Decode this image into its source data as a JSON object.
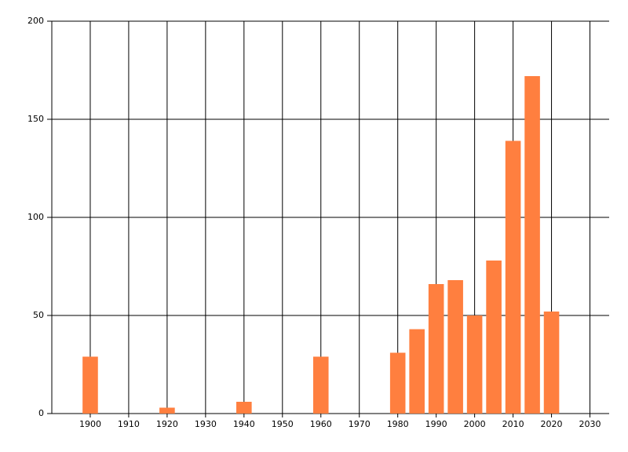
{
  "chart_data": {
    "type": "bar",
    "x": [
      1900,
      1920,
      1940,
      1960,
      1980,
      1985,
      1990,
      1995,
      2000,
      2005,
      2010,
      2015,
      2020
    ],
    "values": [
      29,
      3,
      6,
      29,
      31,
      43,
      66,
      68,
      50,
      78,
      139,
      172,
      52
    ],
    "color": "#ff7f3f",
    "xlim": [
      1890,
      2035
    ],
    "xticks": [
      1900,
      1910,
      1920,
      1930,
      1940,
      1950,
      1960,
      1970,
      1980,
      1990,
      2000,
      2010,
      2020,
      2030
    ],
    "ylim": [
      0,
      200
    ],
    "yticks": [
      0,
      50,
      100,
      150,
      200
    ],
    "grid": true
  }
}
